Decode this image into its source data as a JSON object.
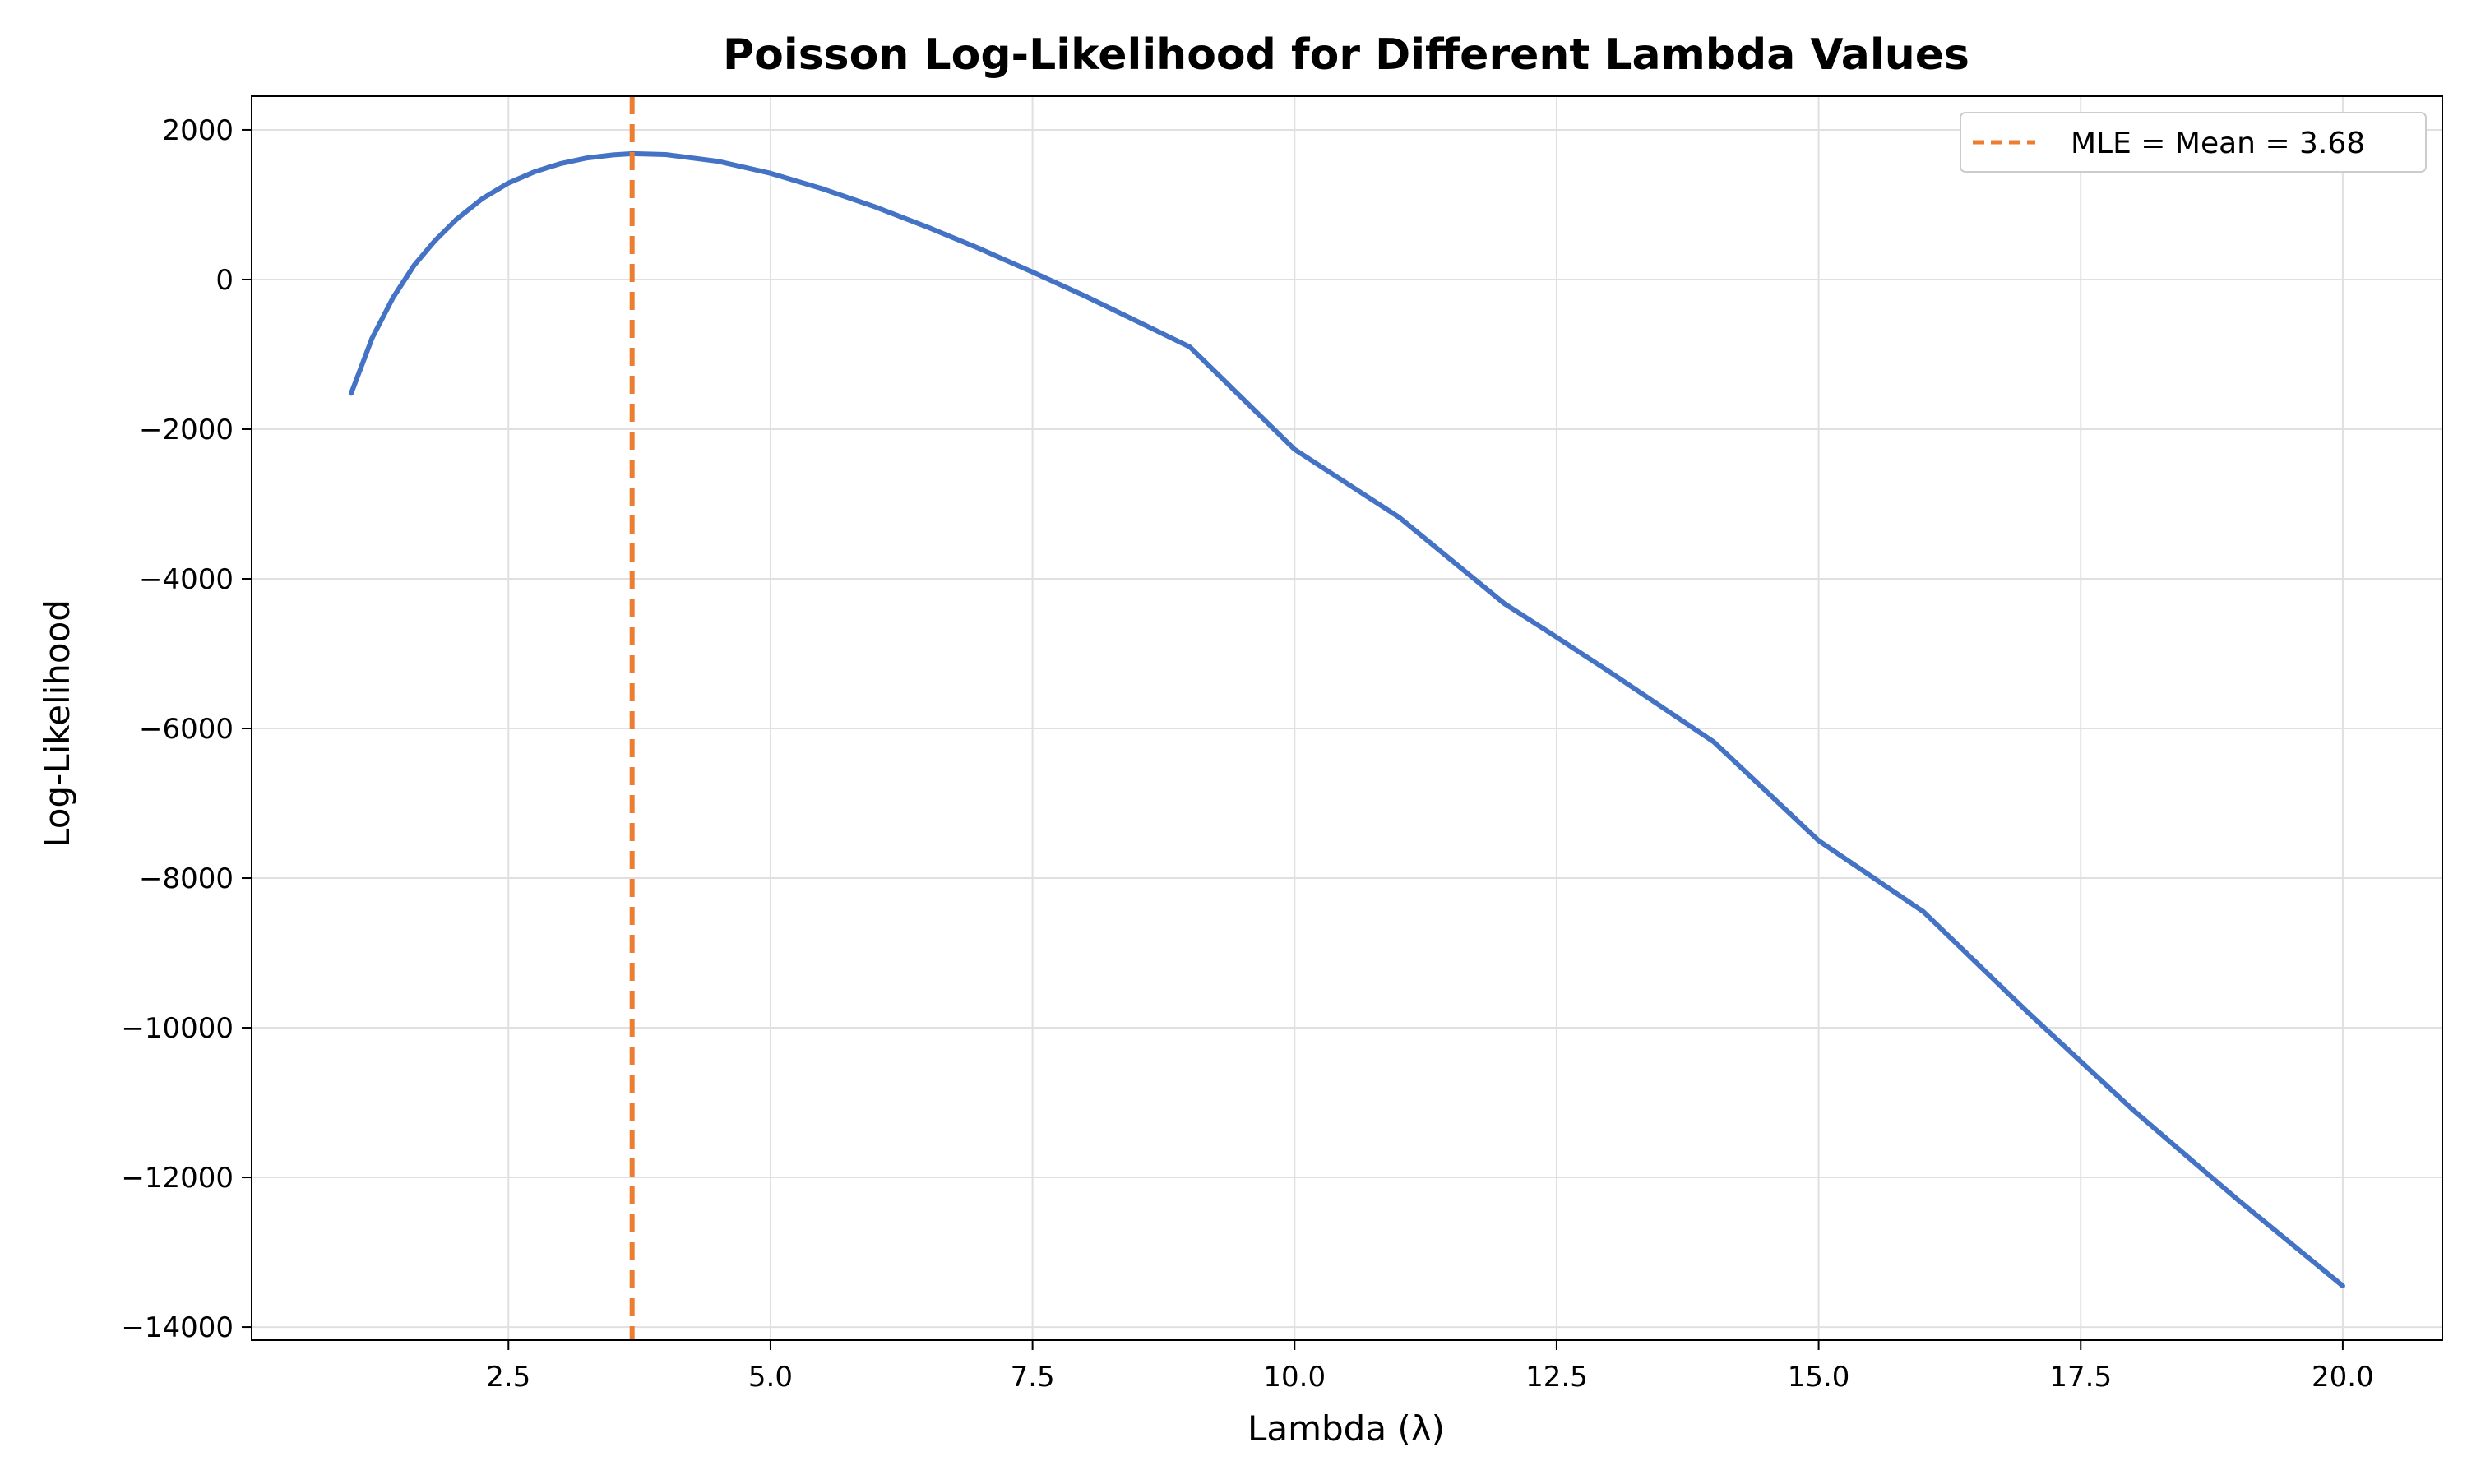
{
  "chart_data": {
    "type": "line",
    "title": "Poisson Log-Likelihood for Different Lambda Values",
    "xlabel": "Lambda (λ)",
    "ylabel": "Log-Likelihood",
    "xlim": [
      0.05,
      20.95
    ],
    "ylim": [
      -14175,
      2450
    ],
    "xticks": [
      2.5,
      5.0,
      7.5,
      10.0,
      12.5,
      15.0,
      17.5,
      20.0
    ],
    "xtick_labels": [
      "2.5",
      "5.0",
      "7.5",
      "10.0",
      "12.5",
      "15.0",
      "17.5",
      "20.0"
    ],
    "yticks": [
      2000,
      0,
      -2000,
      -4000,
      -6000,
      -8000,
      -10000,
      -12000,
      -14000
    ],
    "ytick_labels": [
      "2000",
      "0",
      "−2000",
      "−4000",
      "−6000",
      "−8000",
      "−10000",
      "−12000",
      "−14000"
    ],
    "grid": true,
    "legend_position": "top-right",
    "series": [
      {
        "color": "#4472c4",
        "x": [
          1.0,
          1.2,
          1.4,
          1.6,
          1.8,
          2.0,
          2.25,
          2.5,
          2.75,
          3.0,
          3.25,
          3.5,
          3.68,
          4.0,
          4.5,
          5.0,
          5.5,
          6.0,
          6.5,
          7.0,
          7.5,
          8.0,
          9.0,
          10.0,
          11.0,
          12.0,
          12.5,
          13.0,
          14.0,
          15.0,
          16.0,
          17.0,
          17.5,
          18.0,
          19.0,
          20.0
        ],
        "y": [
          -1520,
          -780,
          -240,
          190,
          520,
          800,
          1080,
          1290,
          1440,
          1550,
          1625,
          1665,
          1682,
          1670,
          1580,
          1420,
          1210,
          970,
          700,
          410,
          100,
          -220,
          -900,
          -2270,
          -3180,
          -4330,
          -4780,
          -5240,
          -6180,
          -7500,
          -8450,
          -9800,
          -10450,
          -11100,
          -12300,
          -13450
        ]
      }
    ],
    "reference_lines": [
      {
        "orientation": "vertical",
        "x": 3.68,
        "style": "dashed",
        "color": "#ed7d31",
        "label": "MLE = Mean = 3.68"
      }
    ]
  }
}
